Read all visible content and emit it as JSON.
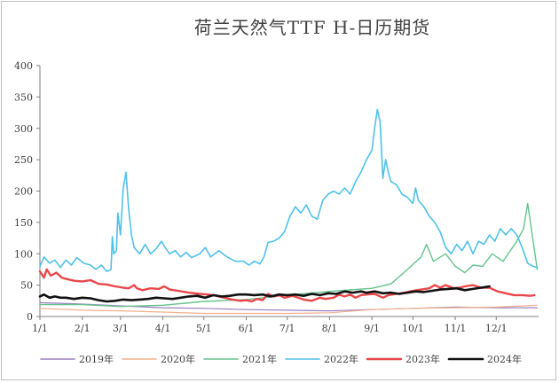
{
  "chart_data": {
    "type": "line",
    "title": "荷兰天然气TTF H-日历期货",
    "xlabel": "",
    "ylabel": "",
    "ylim": [
      0,
      400
    ],
    "yticks": [
      0,
      50,
      100,
      150,
      200,
      250,
      300,
      350,
      400
    ],
    "x_domain": [
      1,
      366
    ],
    "xticks": [
      {
        "label": "1/1",
        "day": 1
      },
      {
        "label": "2/1",
        "day": 32
      },
      {
        "label": "3/1",
        "day": 60
      },
      {
        "label": "4/1",
        "day": 91
      },
      {
        "label": "5/1",
        "day": 121
      },
      {
        "label": "6/1",
        "day": 152
      },
      {
        "label": "7/1",
        "day": 182
      },
      {
        "label": "8/1",
        "day": 213
      },
      {
        "label": "9/1",
        "day": 244
      },
      {
        "label": "10/1",
        "day": 274
      },
      {
        "label": "11/1",
        "day": 305
      },
      {
        "label": "12/1",
        "day": 335
      }
    ],
    "grid": false,
    "legend_position": "bottom",
    "series": [
      {
        "name": "2019年",
        "color": "#9b7fc1",
        "width": 1.2,
        "points": [
          [
            1,
            22
          ],
          [
            30,
            20
          ],
          [
            60,
            17
          ],
          [
            91,
            14
          ],
          [
            121,
            13
          ],
          [
            152,
            11
          ],
          [
            182,
            10
          ],
          [
            213,
            9
          ],
          [
            244,
            11
          ],
          [
            274,
            13
          ],
          [
            305,
            15
          ],
          [
            335,
            14
          ],
          [
            365,
            14
          ]
        ]
      },
      {
        "name": "2020年",
        "color": "#f0b08a",
        "width": 1.2,
        "points": [
          [
            1,
            13
          ],
          [
            32,
            10
          ],
          [
            60,
            9
          ],
          [
            91,
            7
          ],
          [
            121,
            5
          ],
          [
            152,
            5
          ],
          [
            182,
            5
          ],
          [
            213,
            6
          ],
          [
            244,
            11
          ],
          [
            274,
            13
          ],
          [
            305,
            14
          ],
          [
            335,
            15
          ],
          [
            365,
            18
          ]
        ]
      },
      {
        "name": "2021年",
        "color": "#66c28c",
        "width": 1.4,
        "points": [
          [
            1,
            19
          ],
          [
            32,
            19
          ],
          [
            60,
            16
          ],
          [
            91,
            18
          ],
          [
            121,
            24
          ],
          [
            152,
            27
          ],
          [
            182,
            34
          ],
          [
            213,
            40
          ],
          [
            244,
            45
          ],
          [
            258,
            52
          ],
          [
            270,
            75
          ],
          [
            280,
            95
          ],
          [
            284,
            115
          ],
          [
            289,
            88
          ],
          [
            298,
            100
          ],
          [
            305,
            80
          ],
          [
            312,
            70
          ],
          [
            318,
            82
          ],
          [
            325,
            80
          ],
          [
            332,
            100
          ],
          [
            340,
            88
          ],
          [
            350,
            120
          ],
          [
            355,
            140
          ],
          [
            358,
            180
          ],
          [
            360,
            150
          ],
          [
            363,
            105
          ],
          [
            365,
            75
          ]
        ]
      },
      {
        "name": "2022年",
        "color": "#4fc1e9",
        "width": 1.6,
        "points": [
          [
            1,
            80
          ],
          [
            4,
            95
          ],
          [
            8,
            85
          ],
          [
            12,
            90
          ],
          [
            16,
            78
          ],
          [
            20,
            90
          ],
          [
            24,
            82
          ],
          [
            28,
            94
          ],
          [
            33,
            85
          ],
          [
            38,
            82
          ],
          [
            42,
            75
          ],
          [
            46,
            82
          ],
          [
            50,
            72
          ],
          [
            53,
            75
          ],
          [
            54,
            127
          ],
          [
            55,
            100
          ],
          [
            57,
            105
          ],
          [
            58,
            165
          ],
          [
            60,
            130
          ],
          [
            62,
            205
          ],
          [
            64,
            230
          ],
          [
            66,
            170
          ],
          [
            68,
            130
          ],
          [
            70,
            110
          ],
          [
            74,
            100
          ],
          [
            78,
            115
          ],
          [
            82,
            100
          ],
          [
            86,
            108
          ],
          [
            90,
            120
          ],
          [
            92,
            112
          ],
          [
            96,
            100
          ],
          [
            100,
            105
          ],
          [
            104,
            95
          ],
          [
            108,
            102
          ],
          [
            112,
            94
          ],
          [
            118,
            100
          ],
          [
            122,
            110
          ],
          [
            126,
            95
          ],
          [
            132,
            105
          ],
          [
            138,
            95
          ],
          [
            144,
            88
          ],
          [
            150,
            88
          ],
          [
            154,
            82
          ],
          [
            158,
            88
          ],
          [
            162,
            84
          ],
          [
            165,
            95
          ],
          [
            168,
            118
          ],
          [
            172,
            120
          ],
          [
            176,
            125
          ],
          [
            180,
            135
          ],
          [
            184,
            160
          ],
          [
            188,
            175
          ],
          [
            192,
            165
          ],
          [
            196,
            178
          ],
          [
            200,
            160
          ],
          [
            204,
            155
          ],
          [
            208,
            185
          ],
          [
            212,
            195
          ],
          [
            216,
            200
          ],
          [
            220,
            195
          ],
          [
            224,
            205
          ],
          [
            228,
            195
          ],
          [
            232,
            215
          ],
          [
            236,
            230
          ],
          [
            240,
            250
          ],
          [
            244,
            265
          ],
          [
            246,
            300
          ],
          [
            248,
            330
          ],
          [
            250,
            310
          ],
          [
            252,
            220
          ],
          [
            254,
            250
          ],
          [
            256,
            230
          ],
          [
            258,
            215
          ],
          [
            262,
            210
          ],
          [
            266,
            195
          ],
          [
            270,
            190
          ],
          [
            274,
            180
          ],
          [
            276,
            205
          ],
          [
            278,
            185
          ],
          [
            282,
            175
          ],
          [
            286,
            160
          ],
          [
            290,
            150
          ],
          [
            294,
            135
          ],
          [
            298,
            110
          ],
          [
            302,
            100
          ],
          [
            306,
            115
          ],
          [
            310,
            105
          ],
          [
            314,
            120
          ],
          [
            318,
            100
          ],
          [
            322,
            120
          ],
          [
            326,
            115
          ],
          [
            330,
            130
          ],
          [
            334,
            120
          ],
          [
            338,
            140
          ],
          [
            342,
            130
          ],
          [
            346,
            140
          ],
          [
            350,
            130
          ],
          [
            354,
            110
          ],
          [
            358,
            85
          ],
          [
            362,
            80
          ],
          [
            365,
            78
          ]
        ]
      },
      {
        "name": "2023年",
        "color": "#e8474a",
        "width": 2.4,
        "points": [
          [
            1,
            72
          ],
          [
            4,
            62
          ],
          [
            6,
            75
          ],
          [
            9,
            65
          ],
          [
            13,
            70
          ],
          [
            17,
            62
          ],
          [
            20,
            60
          ],
          [
            26,
            57
          ],
          [
            32,
            56
          ],
          [
            38,
            58
          ],
          [
            44,
            52
          ],
          [
            50,
            51
          ],
          [
            56,
            48
          ],
          [
            62,
            46
          ],
          [
            66,
            45
          ],
          [
            70,
            50
          ],
          [
            72,
            45
          ],
          [
            76,
            42
          ],
          [
            82,
            45
          ],
          [
            88,
            44
          ],
          [
            92,
            48
          ],
          [
            96,
            43
          ],
          [
            102,
            41
          ],
          [
            110,
            38
          ],
          [
            118,
            36
          ],
          [
            124,
            35
          ],
          [
            130,
            33
          ],
          [
            136,
            30
          ],
          [
            142,
            27
          ],
          [
            148,
            25
          ],
          [
            152,
            26
          ],
          [
            156,
            24
          ],
          [
            160,
            28
          ],
          [
            164,
            26
          ],
          [
            168,
            36
          ],
          [
            172,
            32
          ],
          [
            176,
            34
          ],
          [
            180,
            30
          ],
          [
            186,
            33
          ],
          [
            190,
            30
          ],
          [
            194,
            27
          ],
          [
            200,
            25
          ],
          [
            206,
            30
          ],
          [
            210,
            28
          ],
          [
            216,
            30
          ],
          [
            220,
            35
          ],
          [
            224,
            32
          ],
          [
            228,
            35
          ],
          [
            232,
            30
          ],
          [
            236,
            34
          ],
          [
            240,
            35
          ],
          [
            246,
            36
          ],
          [
            252,
            30
          ],
          [
            256,
            34
          ],
          [
            262,
            36
          ],
          [
            268,
            38
          ],
          [
            274,
            41
          ],
          [
            280,
            43
          ],
          [
            286,
            45
          ],
          [
            290,
            50
          ],
          [
            294,
            46
          ],
          [
            298,
            50
          ],
          [
            304,
            45
          ],
          [
            308,
            46
          ],
          [
            312,
            48
          ],
          [
            318,
            50
          ],
          [
            324,
            46
          ],
          [
            330,
            46
          ],
          [
            336,
            40
          ],
          [
            342,
            37
          ],
          [
            348,
            34
          ],
          [
            354,
            34
          ],
          [
            360,
            33
          ],
          [
            363,
            34
          ]
        ]
      },
      {
        "name": "2024年",
        "color": "#111111",
        "width": 2.6,
        "points": [
          [
            1,
            32
          ],
          [
            4,
            35
          ],
          [
            8,
            30
          ],
          [
            12,
            32
          ],
          [
            16,
            30
          ],
          [
            20,
            30
          ],
          [
            26,
            28
          ],
          [
            32,
            30
          ],
          [
            38,
            29
          ],
          [
            44,
            26
          ],
          [
            50,
            24
          ],
          [
            56,
            25
          ],
          [
            62,
            27
          ],
          [
            68,
            26
          ],
          [
            74,
            27
          ],
          [
            80,
            28
          ],
          [
            86,
            30
          ],
          [
            92,
            29
          ],
          [
            98,
            28
          ],
          [
            104,
            30
          ],
          [
            110,
            32
          ],
          [
            116,
            33
          ],
          [
            122,
            30
          ],
          [
            128,
            34
          ],
          [
            134,
            32
          ],
          [
            140,
            33
          ],
          [
            146,
            35
          ],
          [
            152,
            35
          ],
          [
            158,
            34
          ],
          [
            164,
            35
          ],
          [
            170,
            32
          ],
          [
            176,
            35
          ],
          [
            182,
            34
          ],
          [
            188,
            35
          ],
          [
            194,
            33
          ],
          [
            200,
            36
          ],
          [
            206,
            34
          ],
          [
            212,
            37
          ],
          [
            218,
            36
          ],
          [
            224,
            40
          ],
          [
            230,
            38
          ],
          [
            236,
            40
          ],
          [
            240,
            38
          ],
          [
            246,
            40
          ],
          [
            252,
            37
          ],
          [
            258,
            38
          ],
          [
            264,
            36
          ],
          [
            270,
            38
          ],
          [
            276,
            40
          ],
          [
            282,
            39
          ],
          [
            288,
            41
          ],
          [
            294,
            43
          ],
          [
            300,
            44
          ],
          [
            306,
            45
          ],
          [
            312,
            42
          ],
          [
            318,
            44
          ],
          [
            324,
            46
          ],
          [
            330,
            48
          ]
        ]
      }
    ]
  }
}
